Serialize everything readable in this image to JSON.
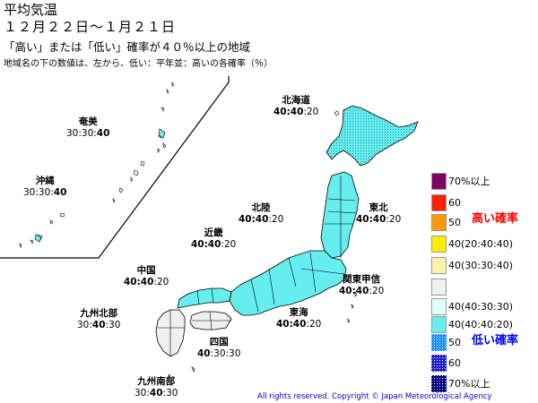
{
  "header": {
    "title": "平均気温",
    "period": "１２月２２日～１月２１日",
    "subtitle": "「高い」または「低い」確率が４０％以上の地域",
    "note": "地域名の下の数値は、左から、低い：平年並：高いの各確率（％）"
  },
  "regions": [
    {
      "name": "北海道",
      "probs": "40:40:20",
      "bold_part": "40:40",
      "plain_part": ":20"
    },
    {
      "name": "奄美",
      "probs": "30:30:40",
      "plain_part": "30:30:",
      "bold_part": "40"
    },
    {
      "name": "沖縄",
      "probs": "30:30:40",
      "plain_part": "30:30:",
      "bold_part": "40"
    },
    {
      "name": "東北",
      "probs": "40:40:20",
      "bold_part": "40:40",
      "plain_part": ":20"
    },
    {
      "name": "北陸",
      "probs": "40:40:20",
      "bold_part": "40:40",
      "plain_part": ":20"
    },
    {
      "name": "近畿",
      "probs": "40:40:20",
      "bold_part": "40:40",
      "plain_part": ":20"
    },
    {
      "name": "中国",
      "probs": "40:40:20",
      "bold_part": "40:40",
      "plain_part": ":20"
    },
    {
      "name": "関東甲信",
      "probs": "40:40:20",
      "bold_part": "40:40",
      "plain_part": ":20"
    },
    {
      "name": "九州北部",
      "probs": "30:40:30",
      "plain_part": "30:",
      "bold_part": "40",
      "plain_part2": ":30"
    },
    {
      "name": "東海",
      "probs": "40:40:20",
      "bold_part": "40:40",
      "plain_part": ":20"
    },
    {
      "name": "四国",
      "probs": "40:30:30",
      "bold_part": "40",
      "plain_part": ":30:30"
    },
    {
      "name": "九州南部",
      "probs": "30:40:30",
      "plain_part": "30:",
      "bold_part": "40",
      "plain_part2": ":30"
    }
  ],
  "legend": {
    "items": [
      {
        "label": "70%以上",
        "color": "#800060"
      },
      {
        "label": "60",
        "color": "#ff2000"
      },
      {
        "label": "50",
        "color": "#ff9900"
      },
      {
        "label": "40(20:40:40)",
        "color": "#ffee00"
      },
      {
        "label": "40(30:30:40)",
        "color": "#fff0b0"
      },
      {
        "label": "",
        "color": "#f0f0f0"
      },
      {
        "label": "40(40:30:30)",
        "color": "#e0ffff"
      },
      {
        "label": "40(40:40:20)",
        "color": "#66eeee"
      },
      {
        "label": "50",
        "color": "#1a90ff"
      },
      {
        "label": "60",
        "color": "#2020cc"
      },
      {
        "label": "70%以上",
        "color": "#000080"
      }
    ],
    "high_label": "高い確率",
    "low_label": "低い確率",
    "high_color": "#ff0000",
    "low_color": "#0000ff"
  },
  "map_colors": {
    "cyan": "#66eeee",
    "light_cyan": "#e0ffff",
    "gray": "#f0f0f0"
  },
  "copyright": "All rights reserved. Copyright © Japan Meteorological Agency"
}
